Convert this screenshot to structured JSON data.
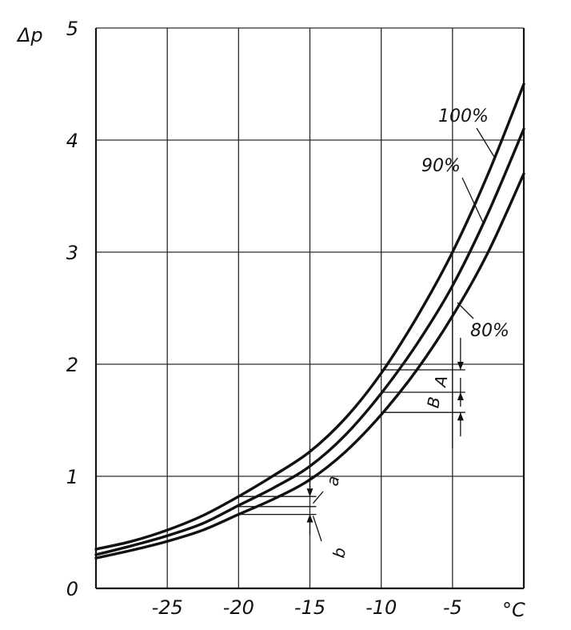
{
  "chart_data": {
    "type": "line",
    "ylabel": "Δp",
    "x_unit": "°C",
    "xlim": [
      -30,
      0
    ],
    "ylim": [
      0,
      5
    ],
    "x_tick_labels": [
      "-25",
      "-20",
      "-15",
      "-10",
      "-5"
    ],
    "y_tick_labels": [
      "0",
      "1",
      "2",
      "3",
      "4",
      "5"
    ],
    "grid": true,
    "series": [
      {
        "name": "100%",
        "x": [
          -30,
          -27.5,
          -25,
          -22.5,
          -20,
          -17.5,
          -15,
          -12.5,
          -10,
          -7.5,
          -5,
          -2.5,
          0
        ],
        "y": [
          0.35,
          0.42,
          0.52,
          0.65,
          0.82,
          1.01,
          1.22,
          1.52,
          1.92,
          2.42,
          3.0,
          3.7,
          4.5
        ]
      },
      {
        "name": "90%",
        "x": [
          -30,
          -27.5,
          -25,
          -22.5,
          -20,
          -17.5,
          -15,
          -12.5,
          -10,
          -7.5,
          -5,
          -2.5,
          0
        ],
        "y": [
          0.3,
          0.38,
          0.47,
          0.58,
          0.74,
          0.9,
          1.09,
          1.37,
          1.74,
          2.18,
          2.7,
          3.35,
          4.1
        ]
      },
      {
        "name": "80%",
        "x": [
          -30,
          -27.5,
          -25,
          -22.5,
          -20,
          -17.5,
          -15,
          -12.5,
          -10,
          -7.5,
          -5,
          -2.5,
          0
        ],
        "y": [
          0.27,
          0.34,
          0.42,
          0.52,
          0.66,
          0.8,
          0.97,
          1.22,
          1.55,
          1.95,
          2.43,
          3.0,
          3.7
        ]
      }
    ],
    "annotations": [
      {
        "label": "a",
        "x": -15,
        "y_from": 0.82,
        "y_to": 0.73
      },
      {
        "label": "b",
        "x": -15,
        "y_from": 0.73,
        "y_to": 0.66
      },
      {
        "label": "A",
        "x": -5,
        "y_from": 1.95,
        "y_to": 1.75
      },
      {
        "label": "B",
        "x": -5,
        "y_from": 1.75,
        "y_to": 1.57
      }
    ]
  },
  "colors": {
    "background": "#ffffff",
    "ink": "#111111"
  }
}
